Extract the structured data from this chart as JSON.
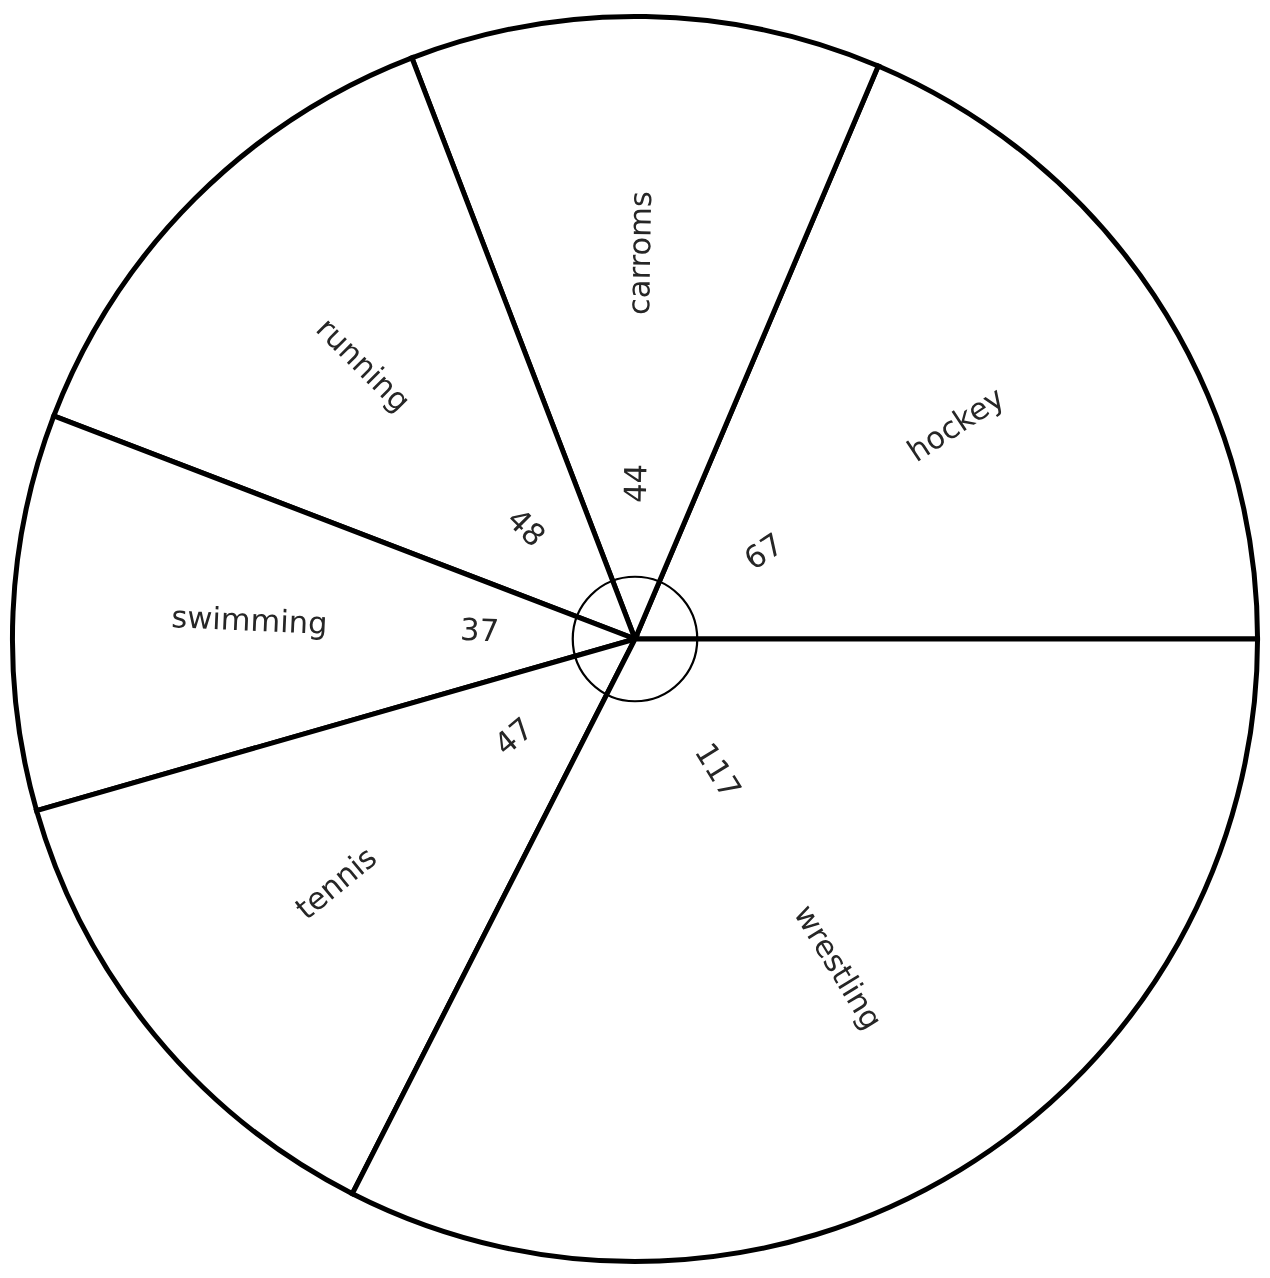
{
  "chart_data": {
    "type": "pie",
    "categories": [
      "hockey",
      "carroms",
      "running",
      "swimming",
      "tennis",
      "wrestling"
    ],
    "values": [
      67,
      44,
      48,
      37,
      47,
      117
    ],
    "colors": [
      "#ffffff",
      "#ffffff",
      "#ffffff",
      "#ffffff",
      "#ffffff",
      "#ffffff"
    ],
    "data_labels": true
  }
}
